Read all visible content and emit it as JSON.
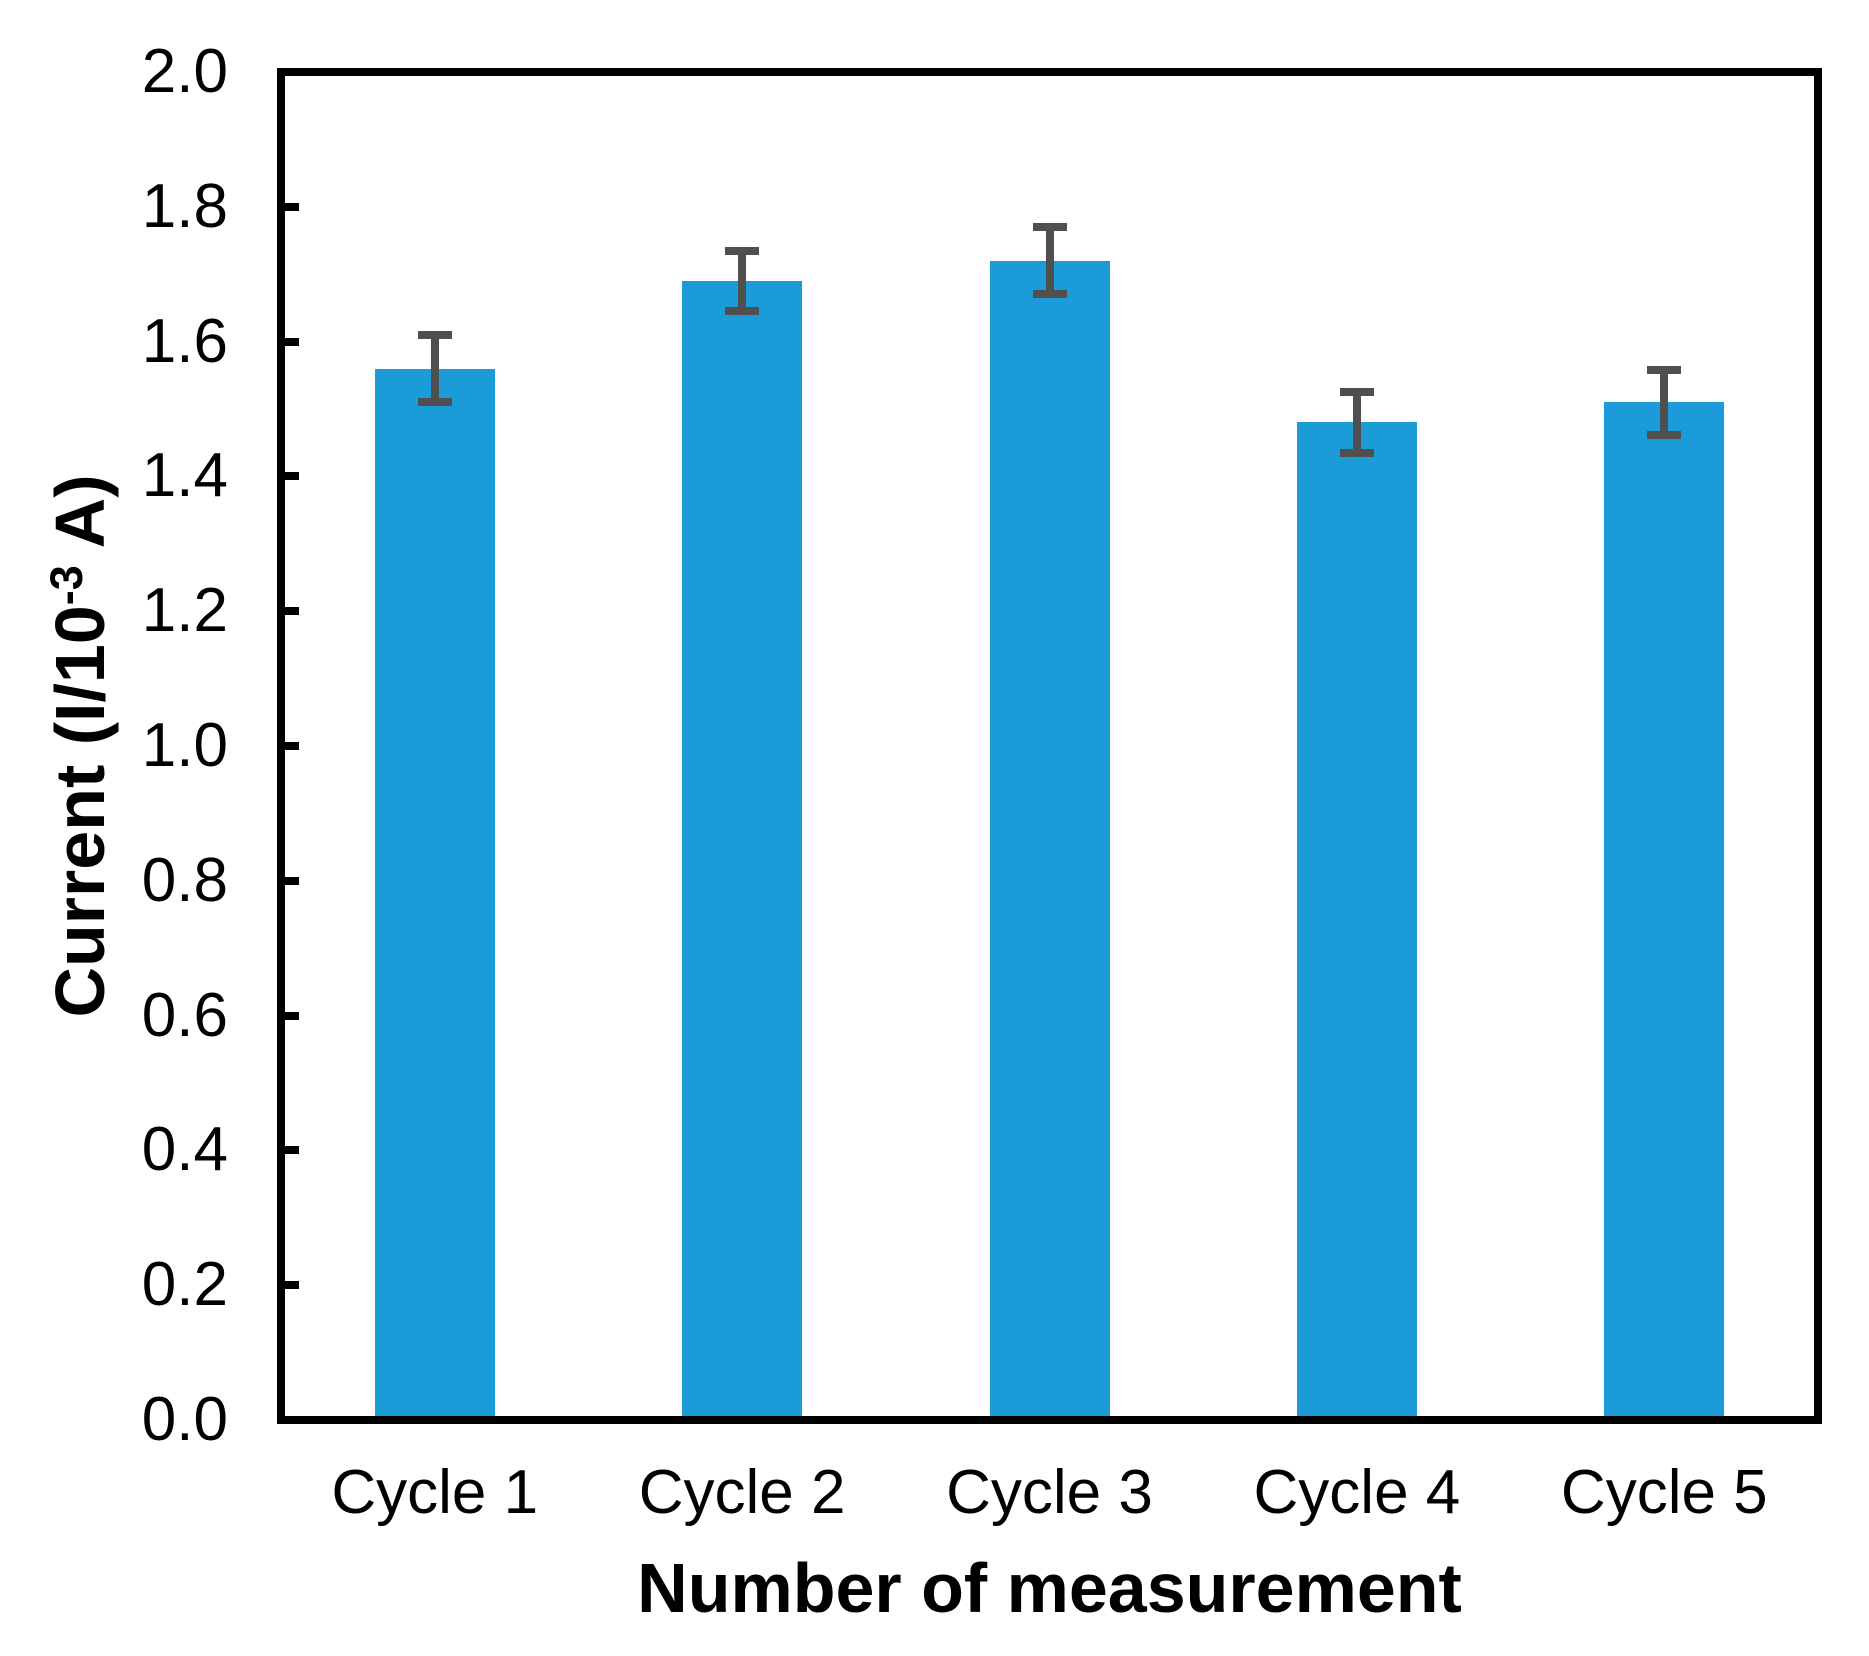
{
  "figure": {
    "background_color": "#ffffff",
    "axis_color": "#000000",
    "bar_color": "#1b9cd9",
    "error_bar_color": "#4f4f4f"
  },
  "y_axis": {
    "title_prefix": "Current (I/10",
    "title_superscript": "-3",
    "title_suffix": " A)",
    "tick_labels": [
      "0.0",
      "0.2",
      "0.4",
      "0.6",
      "0.8",
      "1.0",
      "1.2",
      "1.4",
      "1.6",
      "1.8",
      "2.0"
    ]
  },
  "x_axis": {
    "title": "Number of measurement"
  },
  "chart_data": {
    "type": "bar",
    "title": "",
    "categories": [
      "Cycle 1",
      "Cycle 2",
      "Cycle 3",
      "Cycle 4",
      "Cycle 5"
    ],
    "values": [
      1.56,
      1.69,
      1.72,
      1.48,
      1.51
    ],
    "error_bars": [
      0.05,
      0.045,
      0.05,
      0.045,
      0.048
    ],
    "xlabel": "Number of measurement",
    "ylabel": "Current (I/10^-3 A)",
    "ylim": [
      0.0,
      2.0
    ],
    "ytick_step": 0.2,
    "grid": false,
    "legend": "none",
    "bar_color_hex": "#1b9cd9",
    "error_bar_color_hex": "#4f4f4f"
  }
}
